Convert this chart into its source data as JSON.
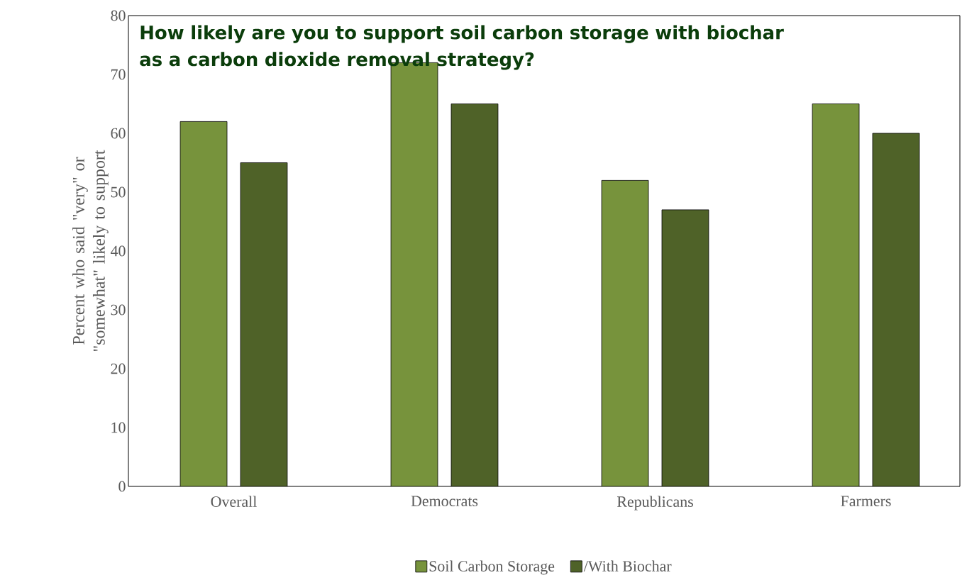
{
  "chart_data": {
    "type": "bar",
    "title": "How likely are you to support soil carbon storage with biochar as a carbon dioxide removal strategy?",
    "ylabel": "Percent who said \"very\" or \"somewhat\" likely to support",
    "categories": [
      "Overall",
      "Democrats",
      "Republicans",
      "Farmers"
    ],
    "series": [
      {
        "name": "Soil Carbon Storage",
        "color": "#77933c",
        "values": [
          62,
          72,
          52,
          65
        ]
      },
      {
        "name": "/With Biochar",
        "color": "#4f6228",
        "values": [
          55,
          65,
          47,
          60
        ]
      }
    ],
    "ylim": [
      0,
      80
    ],
    "yticks": [
      0,
      10,
      20,
      30,
      40,
      50,
      60,
      70,
      80
    ],
    "grid": false,
    "legend": "bottom"
  }
}
